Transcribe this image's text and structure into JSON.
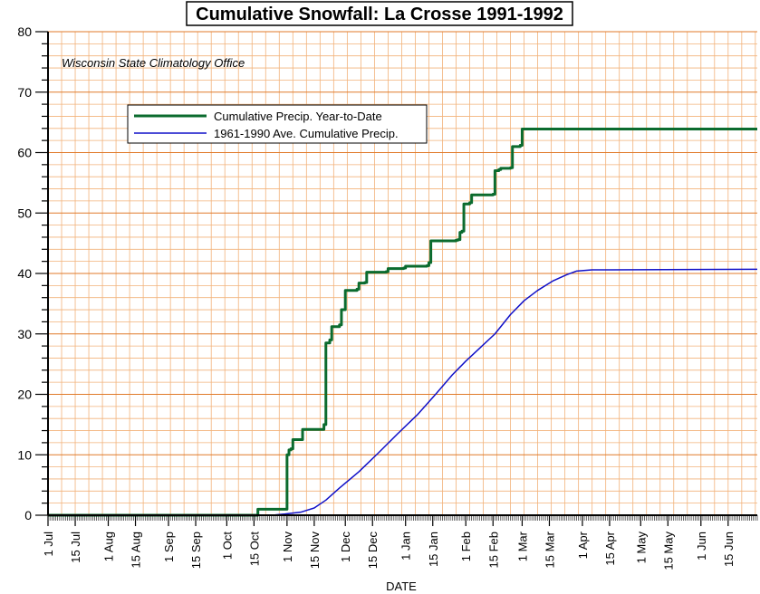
{
  "chart_data": {
    "type": "line",
    "title": "Cumulative Snowfall: La Crosse 1991-1992",
    "annotation": "Wisconsin State Climatology Office",
    "xlabel": "DATE",
    "ylabel": "",
    "ylim": [
      0,
      80
    ],
    "yticks": [
      0,
      10,
      20,
      30,
      40,
      50,
      60,
      70,
      80
    ],
    "xticks": [
      "1 Jul",
      "15 Jul",
      "1 Aug",
      "15 Aug",
      "1 Sep",
      "15 Sep",
      "1 Oct",
      "15 Oct",
      "1 Nov",
      "15 Nov",
      "1 Dec",
      "15 Dec",
      "1 Jan",
      "15 Jan",
      "1 Feb",
      "15 Feb",
      "1 Mar",
      "15 Mar",
      "1 Apr",
      "15 Apr",
      "1 May",
      "15 May",
      "1 Jun",
      "15 Jun"
    ],
    "xtick_days": [
      0,
      14,
      31,
      45,
      62,
      76,
      92,
      106,
      123,
      137,
      153,
      167,
      184,
      198,
      215,
      229,
      244,
      258,
      275,
      289,
      305,
      319,
      336,
      350
    ],
    "xlim_days": [
      0,
      365
    ],
    "grid": true,
    "legend_position": "upper-left",
    "colors": {
      "grid_major": "#e07a2a",
      "grid_minor": "#f2b27a",
      "series_1": "#0b6b2e",
      "series_2": "#1010c8",
      "axis": "#000000"
    },
    "series": [
      {
        "name": "Cumulative Precip. Year-to-Date",
        "color": "#0b6b2e",
        "step": true,
        "points": [
          [
            0,
            0
          ],
          [
            107,
            0
          ],
          [
            108,
            1.0
          ],
          [
            122,
            1.0
          ],
          [
            123,
            10.0
          ],
          [
            124,
            10.8
          ],
          [
            125,
            11.0
          ],
          [
            126,
            12.5
          ],
          [
            130,
            12.5
          ],
          [
            131,
            14.2
          ],
          [
            141,
            14.2
          ],
          [
            142,
            15.0
          ],
          [
            143,
            28.5
          ],
          [
            145,
            29.0
          ],
          [
            146,
            31.2
          ],
          [
            150,
            31.5
          ],
          [
            151,
            34.0
          ],
          [
            153,
            37.2
          ],
          [
            159,
            37.4
          ],
          [
            160,
            38.4
          ],
          [
            163,
            38.5
          ],
          [
            164,
            40.2
          ],
          [
            174,
            40.3
          ],
          [
            175,
            40.8
          ],
          [
            183,
            40.9
          ],
          [
            184,
            41.2
          ],
          [
            195,
            41.3
          ],
          [
            196,
            41.8
          ],
          [
            197,
            45.4
          ],
          [
            210,
            45.5
          ],
          [
            211,
            45.6
          ],
          [
            212,
            46.8
          ],
          [
            213,
            47.0
          ],
          [
            214,
            51.5
          ],
          [
            217,
            51.7
          ],
          [
            218,
            53.0
          ],
          [
            229,
            53.1
          ],
          [
            230,
            57.0
          ],
          [
            232,
            57.2
          ],
          [
            233,
            57.4
          ],
          [
            238,
            57.5
          ],
          [
            239,
            61.0
          ],
          [
            243,
            61.2
          ],
          [
            244,
            63.9
          ],
          [
            365,
            63.9
          ]
        ]
      },
      {
        "name": "1961-1990 Ave. Cumulative Precip.",
        "color": "#1010c8",
        "step": false,
        "points": [
          [
            0,
            0
          ],
          [
            107,
            0
          ],
          [
            117,
            0.05
          ],
          [
            122,
            0.2
          ],
          [
            130,
            0.5
          ],
          [
            137,
            1.2
          ],
          [
            143,
            2.5
          ],
          [
            150,
            4.5
          ],
          [
            160,
            7.2
          ],
          [
            170,
            10.3
          ],
          [
            180,
            13.5
          ],
          [
            190,
            16.6
          ],
          [
            200,
            20.2
          ],
          [
            208,
            23.2
          ],
          [
            215,
            25.5
          ],
          [
            222,
            27.6
          ],
          [
            230,
            30.0
          ],
          [
            238,
            33.2
          ],
          [
            245,
            35.5
          ],
          [
            252,
            37.2
          ],
          [
            260,
            38.8
          ],
          [
            267,
            39.8
          ],
          [
            272,
            40.4
          ],
          [
            280,
            40.6
          ],
          [
            290,
            40.6
          ],
          [
            365,
            40.7
          ]
        ]
      }
    ]
  }
}
